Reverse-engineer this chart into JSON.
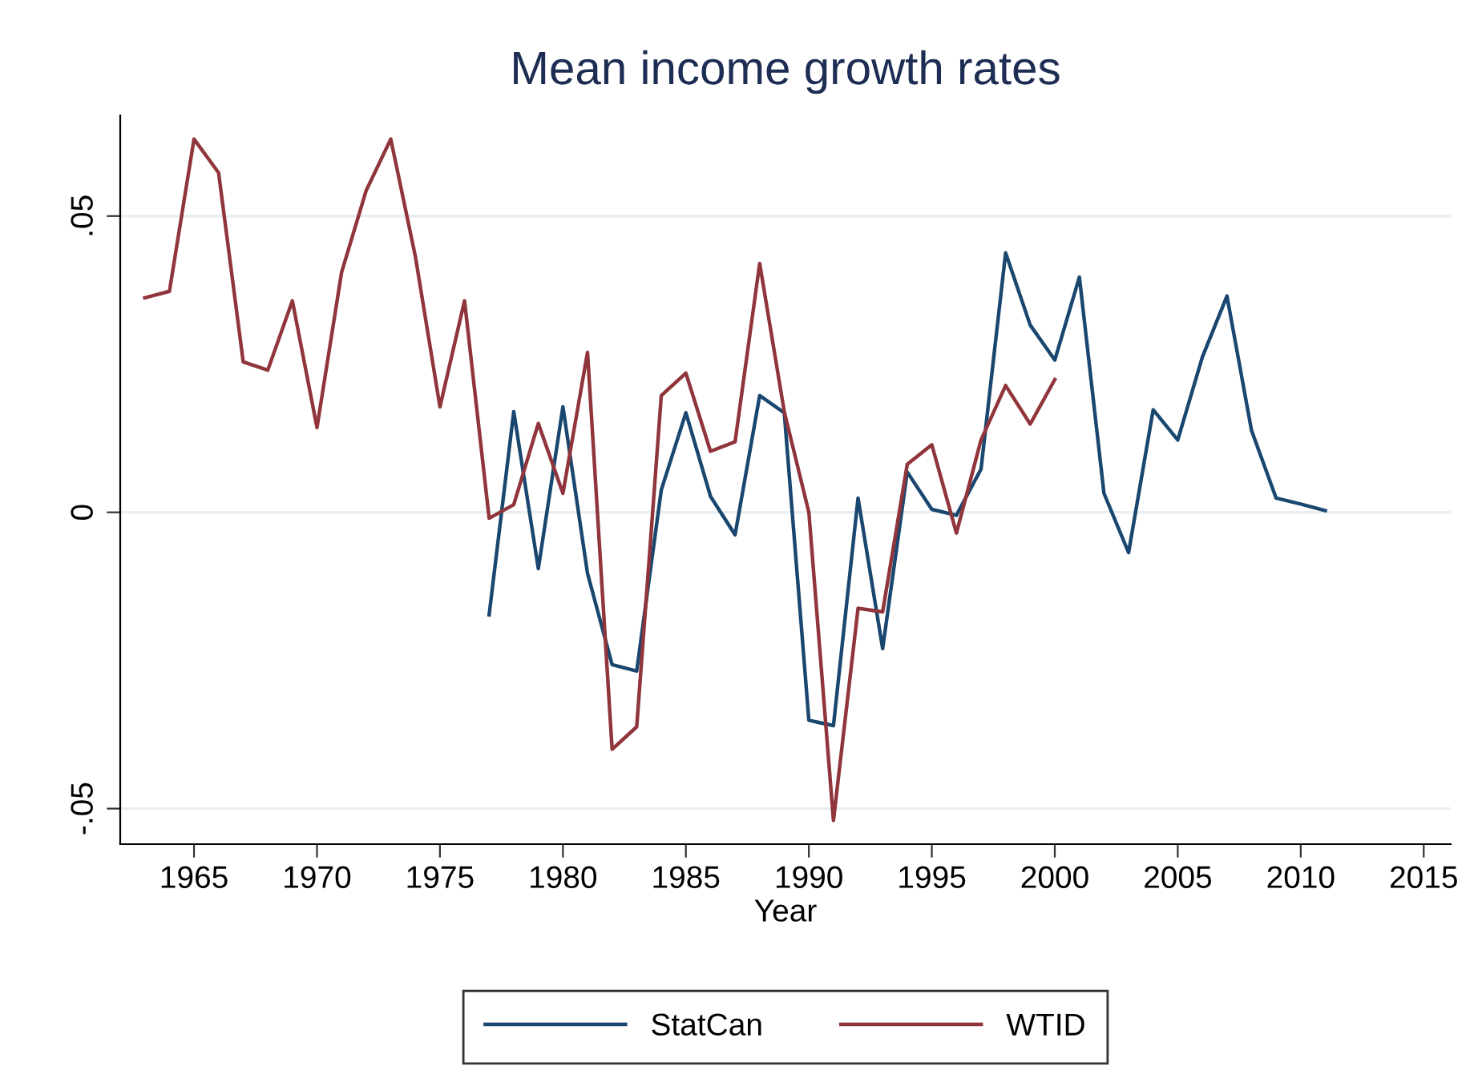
{
  "chart_data": {
    "type": "line",
    "title": "Mean income growth rates",
    "xlabel": "Year",
    "xlim": [
      1962,
      2016.1
    ],
    "xticks": [
      1965,
      1970,
      1975,
      1980,
      1985,
      1990,
      1995,
      2000,
      2005,
      2010,
      2015
    ],
    "ylim": [
      -0.056,
      0.067
    ],
    "yticks": [
      {
        "value": -0.05,
        "label": "-.05"
      },
      {
        "value": 0,
        "label": "0"
      },
      {
        "value": 0.05,
        "label": ".05"
      }
    ],
    "grid": "y",
    "legend": "bottom",
    "marker": "none",
    "line_style": "solid",
    "series": [
      {
        "name": "StatCan",
        "color": "#1a476f",
        "x": [
          1977,
          1978,
          1979,
          1980,
          1981,
          1982,
          1983,
          1984,
          1985,
          1986,
          1987,
          1988,
          1989,
          1990,
          1991,
          1992,
          1993,
          1994,
          1995,
          1996,
          1997,
          1998,
          1999,
          2000,
          2001,
          2002,
          2003,
          2004,
          2005,
          2006,
          2007,
          2008,
          2009,
          2010,
          2011
        ],
        "values": [
          -0.0173,
          0.017,
          -0.0095,
          0.0178,
          -0.0103,
          -0.0257,
          -0.0268,
          0.0038,
          0.0168,
          0.0027,
          -0.0038,
          0.0197,
          0.0168,
          -0.0351,
          -0.036,
          0.0024,
          -0.023,
          0.0068,
          0.0005,
          -0.0005,
          0.0073,
          0.0438,
          0.0316,
          0.0257,
          0.0397,
          0.0032,
          -0.0068,
          0.0173,
          0.0122,
          0.0262,
          0.0365,
          0.0138,
          0.0024,
          0.0014,
          0.0003
        ]
      },
      {
        "name": "WTID",
        "color": "#90353b",
        "x": [
          1963,
          1964,
          1965,
          1966,
          1967,
          1968,
          1969,
          1970,
          1971,
          1972,
          1973,
          1974,
          1975,
          1976,
          1977,
          1978,
          1979,
          1980,
          1981,
          1982,
          1983,
          1984,
          1985,
          1986,
          1987,
          1988,
          1989,
          1990,
          1991,
          1992,
          1993,
          1994,
          1995,
          1996,
          1997,
          1998,
          1999,
          2000
        ],
        "values": [
          0.0362,
          0.0373,
          0.063,
          0.0573,
          0.0254,
          0.024,
          0.0357,
          0.0143,
          0.0405,
          0.0543,
          0.063,
          0.0432,
          0.0178,
          0.0357,
          -0.001,
          0.0013,
          0.015,
          0.0032,
          0.027,
          -0.04,
          -0.0362,
          0.0197,
          0.0235,
          0.0103,
          0.0119,
          0.042,
          0.017,
          0.0,
          -0.052,
          -0.0162,
          -0.0168,
          0.0081,
          0.0114,
          -0.0035,
          0.0122,
          0.0214,
          0.0149,
          0.0224
        ]
      }
    ]
  }
}
